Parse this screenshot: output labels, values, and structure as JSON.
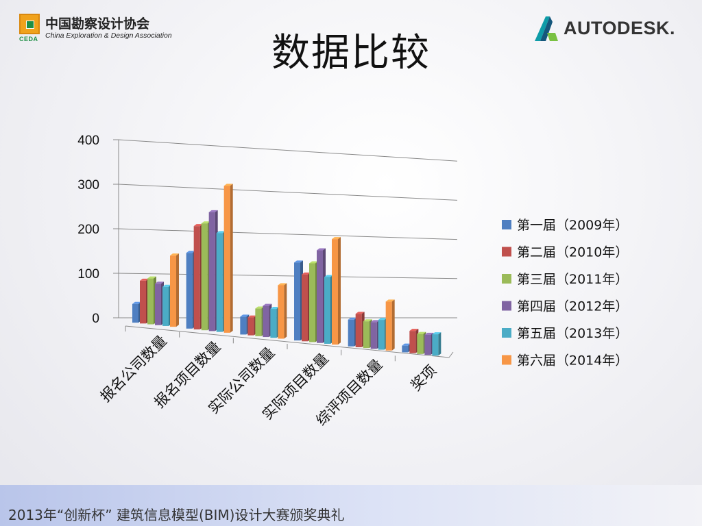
{
  "header": {
    "org_name_cn": "中国勘察设计协会",
    "org_name_en": "China Exploration & Design Association",
    "org_abbr": "CEDA",
    "title": "数据比较",
    "sponsor": "AUTODESK."
  },
  "footer": {
    "text": "2013年“创新杯” 建筑信息模型(BIM)设计大赛颁奖典礼"
  },
  "colors": {
    "series": [
      "#4f7fc1",
      "#c0504d",
      "#9bbb59",
      "#8064a2",
      "#4bacc6",
      "#f79646"
    ],
    "footer_band": "#c3cdee"
  },
  "chart_data": {
    "type": "bar",
    "style": "3d-clustered-column",
    "categories": [
      "报名公司数量",
      "报名项目数量",
      "实际公司数量",
      "实际项目数量",
      "综评项目数量",
      "奖项"
    ],
    "series": [
      {
        "name": "第一届（2009年）",
        "values": [
          42,
          170,
          40,
          175,
          60,
          15
        ]
      },
      {
        "name": "第二届（2010年）",
        "values": [
          96,
          232,
          40,
          150,
          75,
          50
        ]
      },
      {
        "name": "第三届（2011年）",
        "values": [
          103,
          240,
          62,
          177,
          60,
          45
        ]
      },
      {
        "name": "第四届（2012年）",
        "values": [
          93,
          267,
          70,
          208,
          60,
          45
        ]
      },
      {
        "name": "第五届（2013年）",
        "values": [
          88,
          222,
          65,
          150,
          67,
          48
        ]
      },
      {
        "name": "第六届（2014年）",
        "values": [
          160,
          330,
          120,
          237,
          110,
          0
        ]
      }
    ],
    "yticks": [
      0,
      100,
      200,
      300,
      400
    ],
    "ylim": [
      0,
      400
    ],
    "grid": true,
    "legend_position": "right"
  }
}
